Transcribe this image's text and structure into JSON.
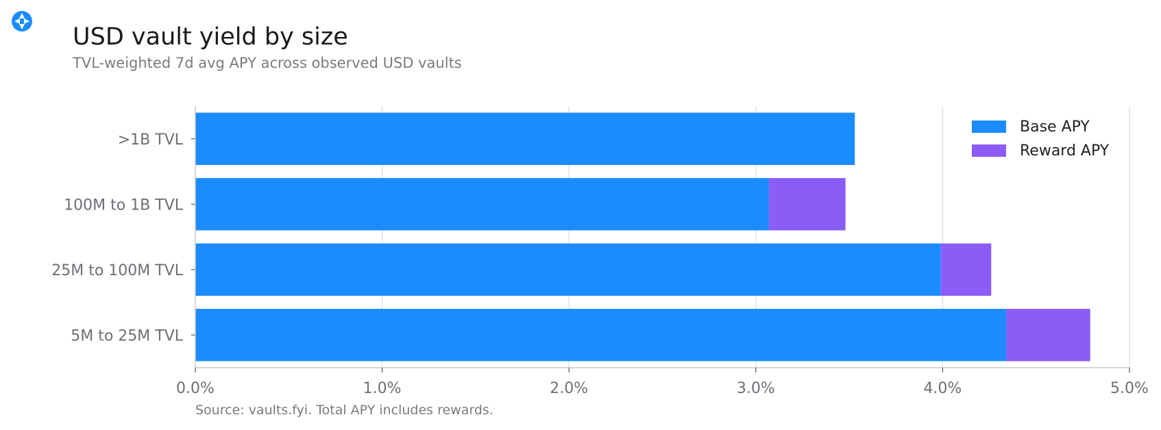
{
  "title": "USD vault yield by size",
  "subtitle": "TVL-weighted 7d avg APY across observed USD vaults",
  "source": "Source: vaults.fyi. Total APY includes rewards.",
  "colors": {
    "base": "#1a8cff",
    "reward": "#8b5cf6",
    "grid": "#dcdcdc",
    "axis": "#c8c8c8",
    "logo": "#1a8cff"
  },
  "chart_data": {
    "type": "bar",
    "orientation": "horizontal",
    "stacked": true,
    "categories": [
      ">1B TVL",
      "100M to 1B TVL",
      "25M to 100M TVL",
      "5M to 25M TVL"
    ],
    "series": [
      {
        "name": "Base APY",
        "values": [
          3.53,
          3.07,
          3.99,
          4.34
        ]
      },
      {
        "name": "Reward APY",
        "values": [
          0.0,
          0.41,
          0.27,
          0.45
        ]
      }
    ],
    "x_ticks": [
      "0.0%",
      "1.0%",
      "2.0%",
      "3.0%",
      "4.0%",
      "5.0%"
    ],
    "xlim": [
      0,
      5
    ],
    "grid": true,
    "legend_position": "top-right"
  }
}
